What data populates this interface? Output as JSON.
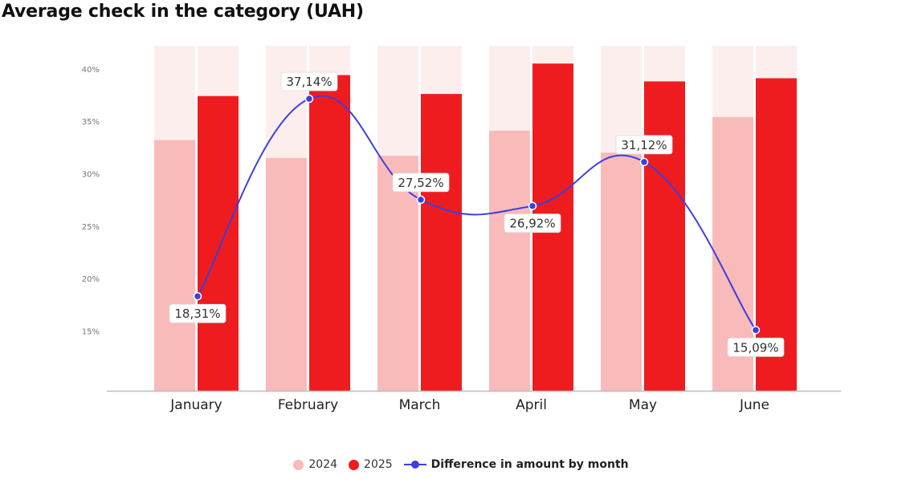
{
  "title": "Average check in the category (UAH)",
  "colors": {
    "series_2024": "#f9baba",
    "series_2025": "#ee1c1f",
    "background_bar": "#fdeeee",
    "difference_line": "#3b3fe0",
    "axis": "#bbbbbb"
  },
  "chart_data": {
    "type": "bar",
    "title": "Average check in the category (UAH)",
    "categories": [
      "January",
      "February",
      "March",
      "April",
      "May",
      "June"
    ],
    "series": [
      {
        "name": "2024",
        "values": [
          33.2,
          31.5,
          31.7,
          34.1,
          32.0,
          35.4
        ]
      },
      {
        "name": "2025",
        "values": [
          37.4,
          39.4,
          37.6,
          40.5,
          38.8,
          39.1
        ]
      }
    ],
    "line_series": {
      "name": "Difference in amount by month",
      "values": [
        18.31,
        37.14,
        27.52,
        26.92,
        31.12,
        15.09
      ],
      "labels": [
        "18,31%",
        "37,14%",
        "27,52%",
        "26,92%",
        "31,12%",
        "15,09%"
      ],
      "label_positions": [
        "below",
        "above",
        "above",
        "below",
        "above",
        "below"
      ]
    },
    "yticks": [
      "15%",
      "20%",
      "25%",
      "30%",
      "35%",
      "40%"
    ],
    "ytick_values": [
      15,
      20,
      25,
      30,
      35,
      40
    ],
    "ylim": [
      9.3,
      42.2
    ],
    "xlabel": "",
    "ylabel": "",
    "grid": false,
    "legend": "bottom"
  },
  "legend": {
    "label_2024": "2024",
    "label_2025": "2025",
    "label_difference": "Difference in amount by month"
  }
}
